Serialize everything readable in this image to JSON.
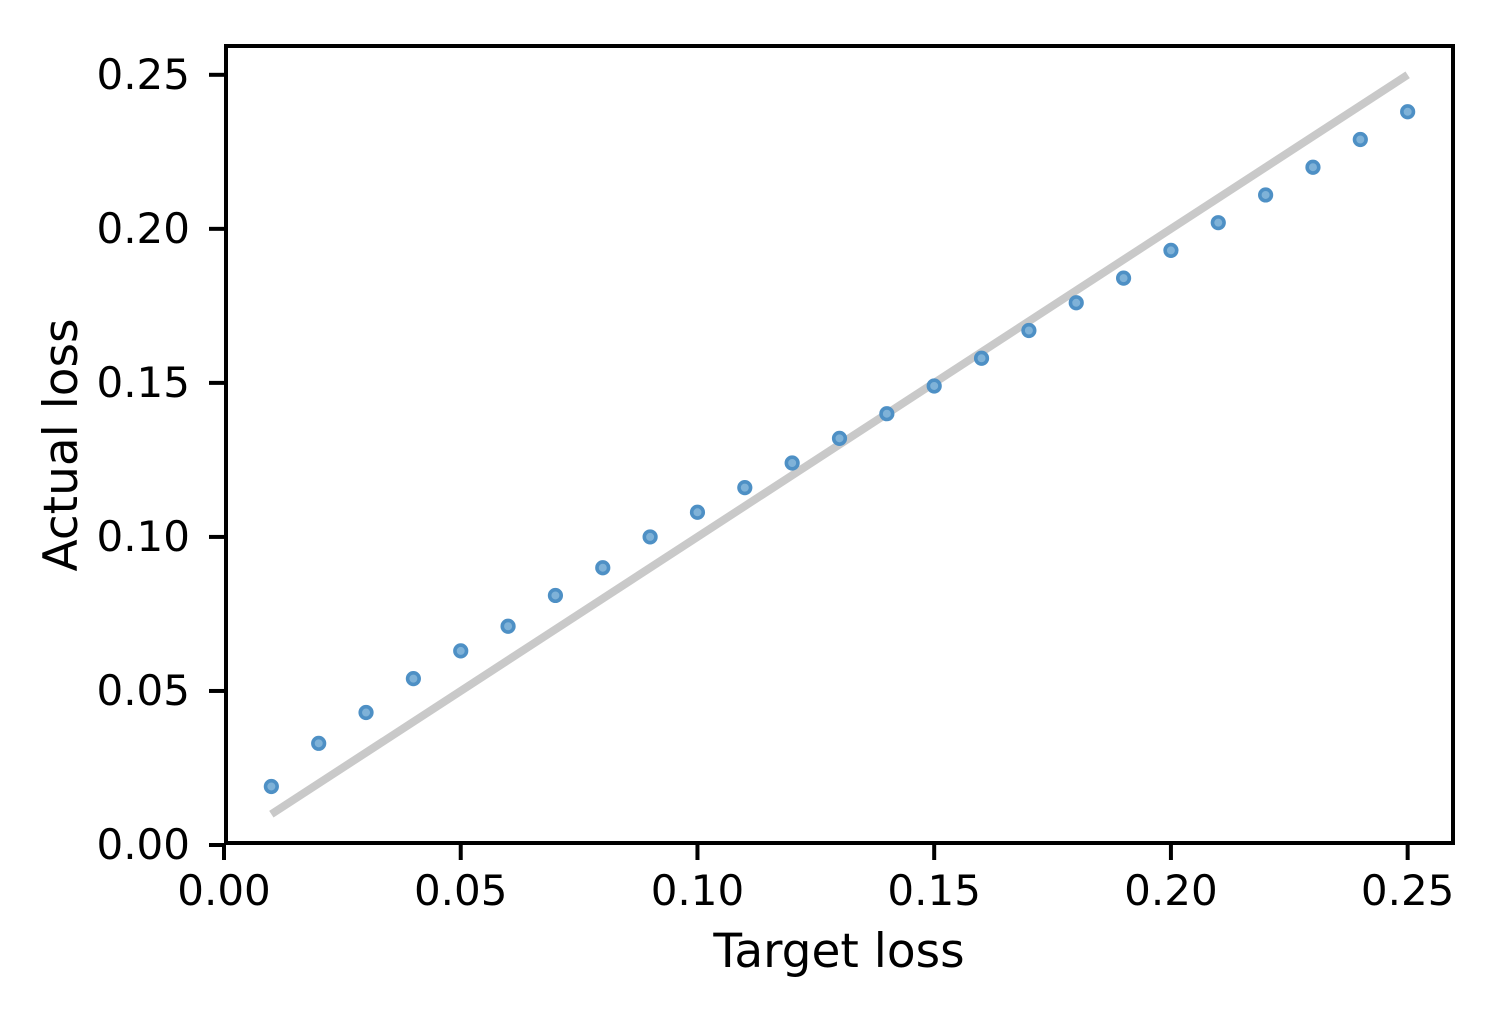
{
  "chart_data": {
    "type": "scatter",
    "title": "",
    "xlabel": "Target loss",
    "ylabel": "Actual loss",
    "xlim": [
      0,
      0.26
    ],
    "ylim": [
      0,
      0.26
    ],
    "grid": false,
    "legend": null,
    "xticks": {
      "values": [
        0.0,
        0.05,
        0.1,
        0.15,
        0.2,
        0.25
      ],
      "labels": [
        "0.00",
        "0.05",
        "0.10",
        "0.15",
        "0.20",
        "0.25"
      ]
    },
    "yticks": {
      "values": [
        0.0,
        0.05,
        0.1,
        0.15,
        0.2,
        0.25
      ],
      "labels": [
        "0.00",
        "0.05",
        "0.10",
        "0.15",
        "0.20",
        "0.25"
      ]
    },
    "series": [
      {
        "name": "actual-vs-target-points",
        "type": "scatter",
        "x": [
          0.01,
          0.02,
          0.03,
          0.04,
          0.05,
          0.06,
          0.07,
          0.08,
          0.09,
          0.1,
          0.11,
          0.12,
          0.13,
          0.14,
          0.15,
          0.16,
          0.17,
          0.18,
          0.19,
          0.2,
          0.21,
          0.22,
          0.23,
          0.24,
          0.25
        ],
        "y": [
          0.019,
          0.033,
          0.043,
          0.054,
          0.063,
          0.071,
          0.081,
          0.09,
          0.1,
          0.108,
          0.116,
          0.124,
          0.132,
          0.14,
          0.149,
          0.158,
          0.167,
          0.176,
          0.184,
          0.193,
          0.202,
          0.211,
          0.22,
          0.229,
          0.238
        ]
      },
      {
        "name": "identity-reference-line",
        "type": "line",
        "x": [
          0.01,
          0.25
        ],
        "y": [
          0.01,
          0.25
        ]
      }
    ],
    "colors": {
      "marker_fill": "#7fb2d8",
      "marker_edge": "#4e90c5",
      "reference_line": "#c9c9c9",
      "spine": "#000000",
      "text": "#000000",
      "background": "#ffffff"
    }
  }
}
